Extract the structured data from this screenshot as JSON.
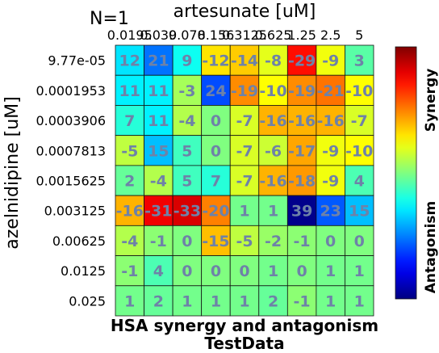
{
  "n_label": "N=1",
  "chart_data": {
    "type": "heatmap",
    "title": "HSA synergy and antagonism",
    "subtitle": "TestData",
    "xlabel": "artesunate [uM]",
    "ylabel": "azelnidipine [uM]",
    "x_ticks": [
      "0.0195",
      "0.039",
      "0.078",
      "0.156",
      "0.3125",
      "0.625",
      "1.25",
      "2.5",
      "5"
    ],
    "y_ticks": [
      "9.77e-05",
      "0.0001953",
      "0.0003906",
      "0.0007813",
      "0.0015625",
      "0.003125",
      "0.00625",
      "0.0125",
      "0.025"
    ],
    "values": [
      [
        12,
        21,
        9,
        -12,
        -14,
        -8,
        -29,
        -9,
        3
      ],
      [
        11,
        11,
        -3,
        24,
        -19,
        -10,
        -19,
        -21,
        -10
      ],
      [
        7,
        11,
        -4,
        0,
        -7,
        -16,
        -16,
        -16,
        -7
      ],
      [
        -5,
        15,
        5,
        0,
        -7,
        -6,
        -17,
        -9,
        -10
      ],
      [
        2,
        -4,
        5,
        7,
        -7,
        -16,
        -18,
        -9,
        4
      ],
      [
        -16,
        -31,
        -33,
        -20,
        1,
        1,
        39,
        23,
        15
      ],
      [
        -4,
        -1,
        0,
        -15,
        -5,
        -2,
        -1,
        0,
        0
      ],
      [
        -1,
        4,
        0,
        0,
        0,
        1,
        0,
        1,
        1
      ],
      [
        1,
        2,
        1,
        1,
        1,
        2,
        -1,
        1,
        1
      ]
    ],
    "colorbar": {
      "range": [
        -40,
        40
      ],
      "top_label": "Synergy",
      "bottom_label": "Antagonism",
      "colormap": "jet"
    },
    "grid": true
  }
}
